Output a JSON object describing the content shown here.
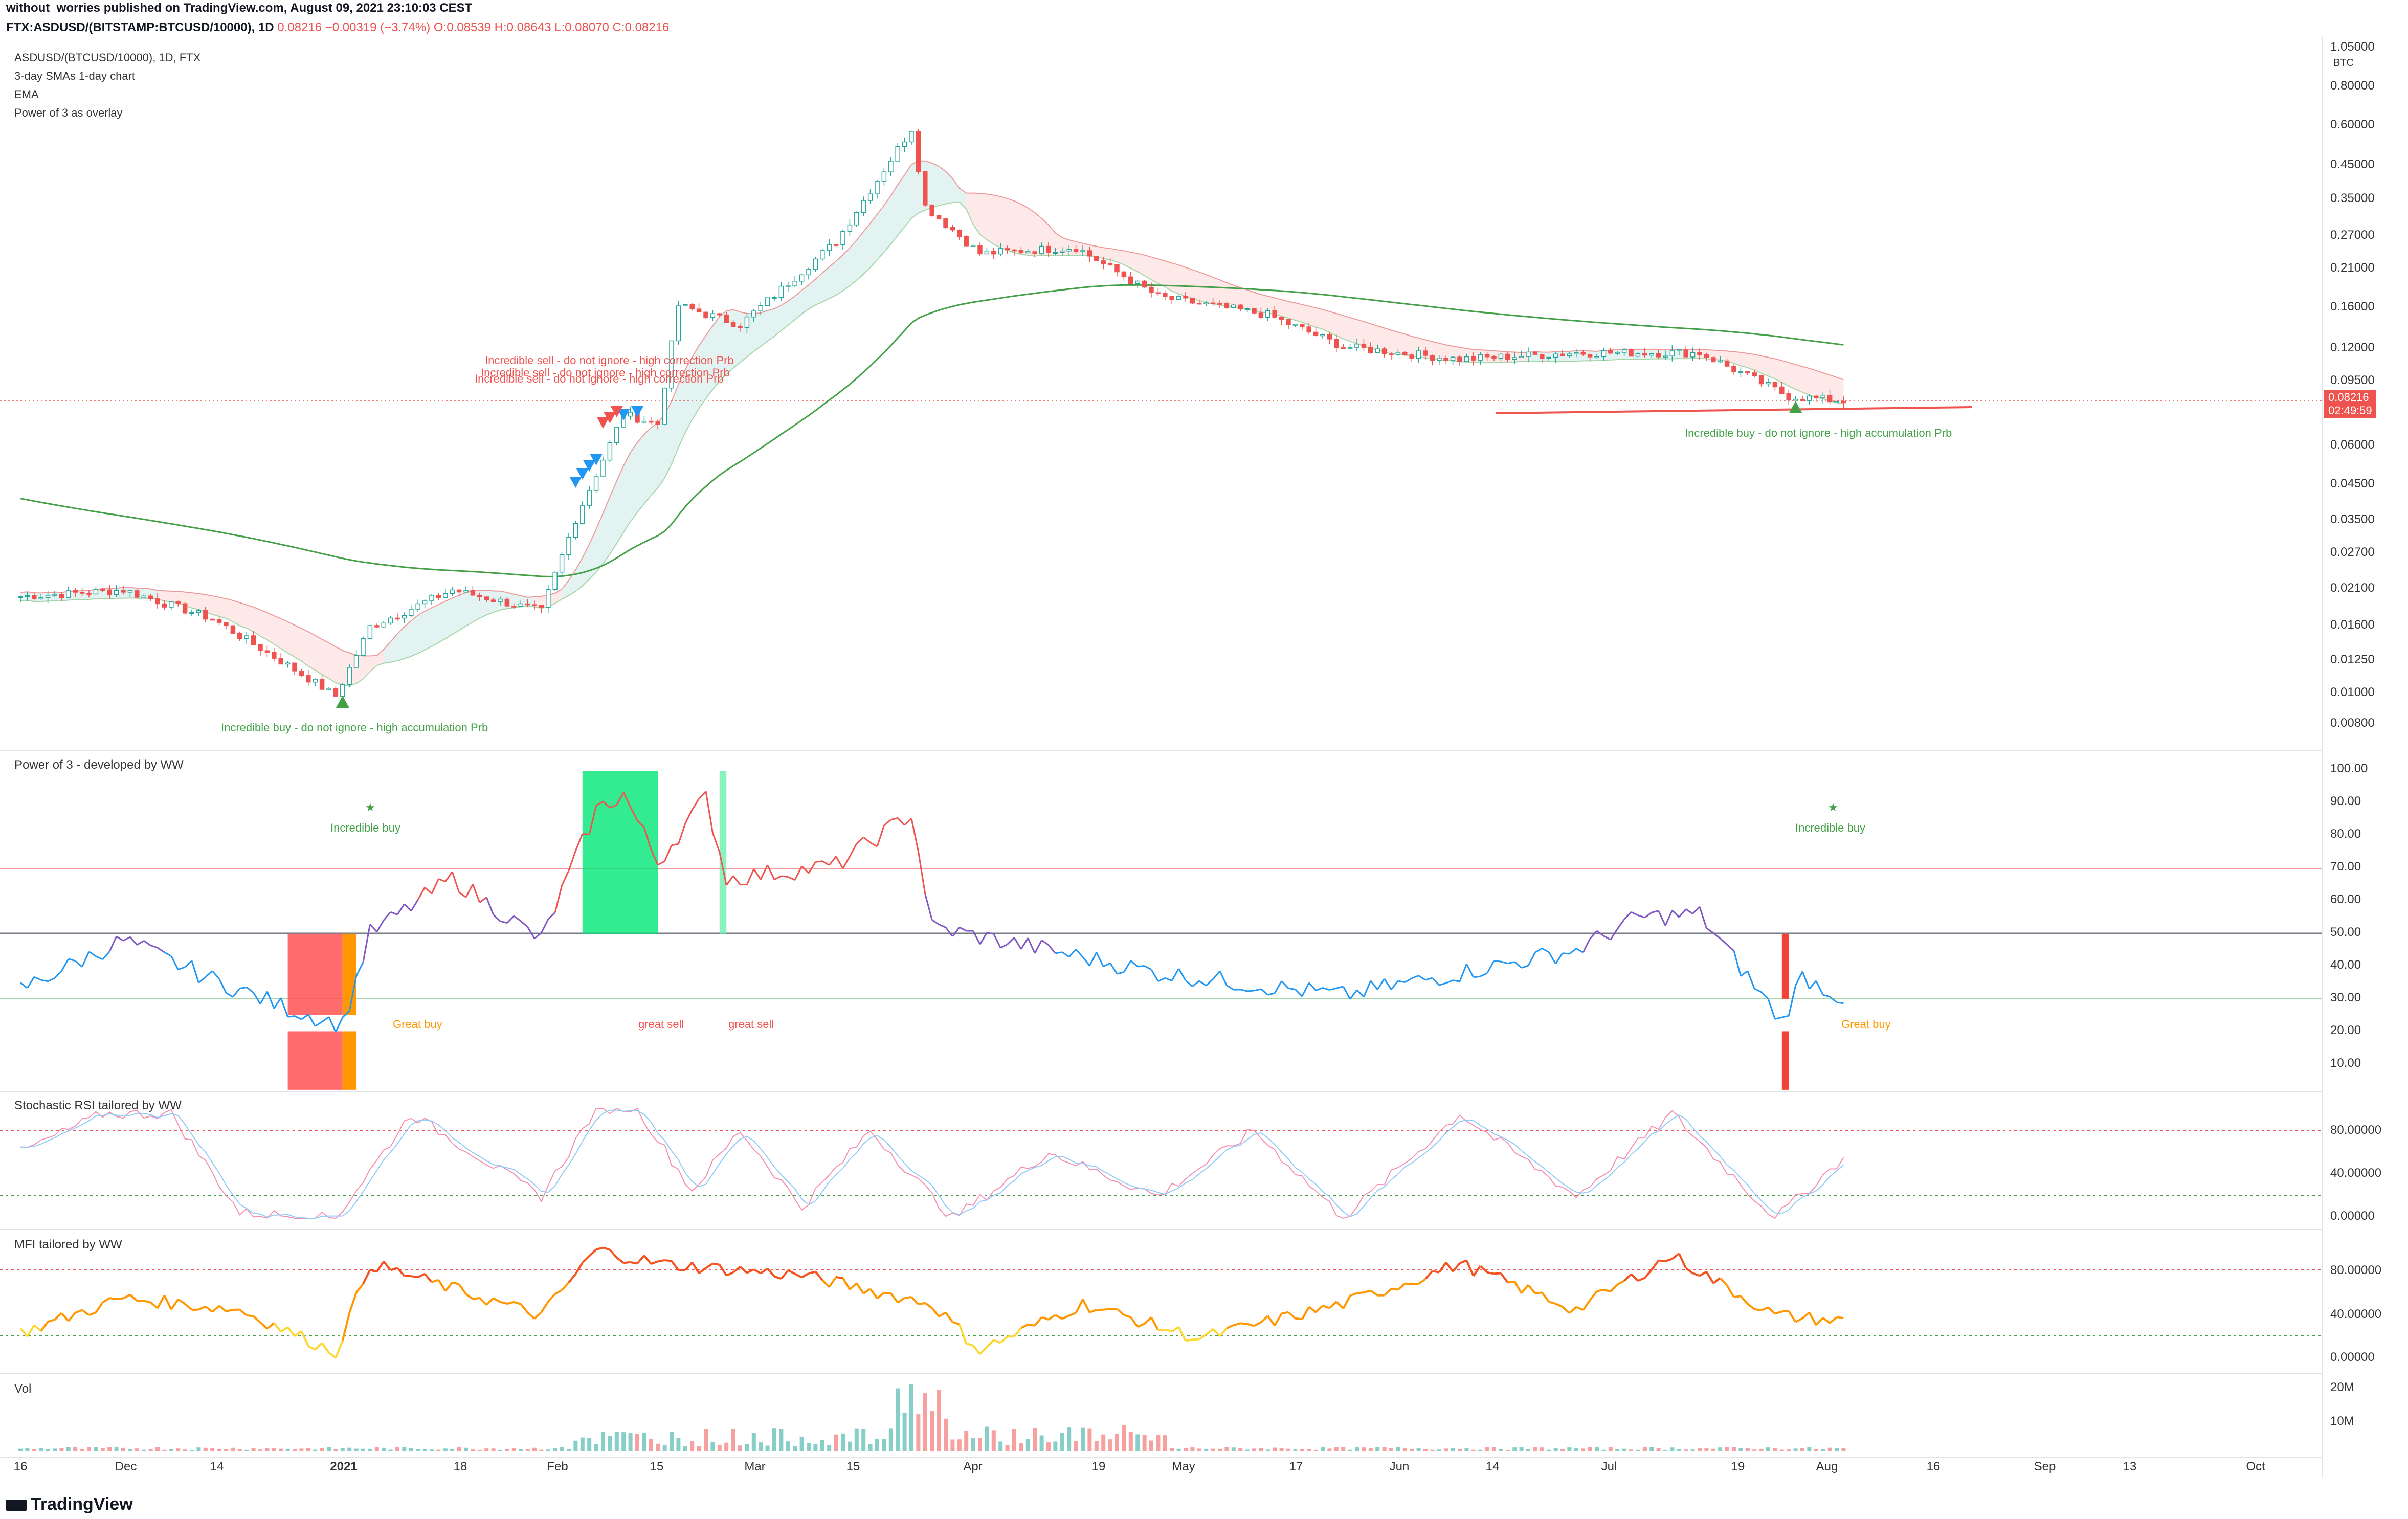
{
  "header": {
    "publisher": "without_worries published on TradingView.com, August 09, 2021 23:10:03 CEST",
    "symbol": "FTX:ASDUSD/(BITSTAMP:BTCUSD/10000), 1D",
    "open_label": "0.08216",
    "change": "−0.00319 (−3.74%)",
    "o": "O:0.08539",
    "h": "H:0.08643",
    "l": "L:0.08070",
    "c": "C:0.08216"
  },
  "legend": {
    "symbol": "ASDUSD/(BTCUSD/10000), 1D, FTX",
    "line1": "3-day SMAs 1-day chart",
    "line2": "EMA",
    "line3": "Power of 3 as overlay"
  },
  "colors": {
    "up": "#26a69a",
    "down": "#ef5350",
    "green_line": "#43a047",
    "blue_line": "#2196f3",
    "orange": "#ff9800",
    "purple": "#673ab7"
  },
  "price_axis": {
    "unit": "BTC",
    "ticks": [
      "1.05000",
      "0.80000",
      "0.60000",
      "0.45000",
      "0.35000",
      "0.27000",
      "0.21000",
      "0.16000",
      "0.12000",
      "0.09500",
      "0.06000",
      "0.04500",
      "0.03500",
      "0.02700",
      "0.02100",
      "0.01600",
      "0.01250",
      "0.01000",
      "0.00800"
    ],
    "last_price": "0.08216",
    "countdown": "02:49:59"
  },
  "x_axis": {
    "labels": [
      "16",
      "Dec",
      "14",
      "2021",
      "18",
      "Feb",
      "15",
      "Mar",
      "15",
      "Apr",
      "19",
      "May",
      "17",
      "Jun",
      "14",
      "Jul",
      "19",
      "Aug",
      "16",
      "Sep",
      "13",
      "Oct"
    ]
  },
  "annotations": {
    "sell1": "Incredible sell - do not ignore - high correction Prb",
    "sell2": "Incredible sell - do not ignore - high correction Prb",
    "sell3": "Incredible sell - do not ignore - high correction Prb",
    "buy1": "Incredible buy - do not ignore - high accumulation Prb",
    "buy2": "Incredible buy - do not ignore - high accumulation Prb"
  },
  "power3": {
    "title": "Power of 3 - developed by WW",
    "ticks": [
      "100.00",
      "90.00",
      "80.00",
      "70.00",
      "60.00",
      "50.00",
      "40.00",
      "30.00",
      "20.00",
      "10.00"
    ],
    "incredible_buy_1": "Incredible buy",
    "incredible_buy_2": "Incredible buy",
    "great_buy_1": "Great buy",
    "great_buy_2": "Great buy",
    "great_sell_1": "great sell",
    "great_sell_2": "great sell"
  },
  "stoch": {
    "title": "Stochastic RSI tailored by WW",
    "ticks": [
      "80.00000",
      "40.00000",
      "0.00000"
    ]
  },
  "mfi": {
    "title": "MFI tailored by WW",
    "ticks": [
      "80.00000",
      "40.00000",
      "0.00000"
    ]
  },
  "vol": {
    "title": "Vol",
    "ticks": [
      "20M",
      "10M"
    ]
  },
  "footer": {
    "brand": "TradingView"
  },
  "chart_data": {
    "type": "candlestick",
    "title": "ASDUSD/(BTCUSD/10000), 1D, FTX",
    "y_scale": "log",
    "ylim": [
      0.0075,
      1.05
    ],
    "close_path": [
      {
        "x": "2020-11-16",
        "y": 0.021
      },
      {
        "x": "2020-12-01",
        "y": 0.022
      },
      {
        "x": "2020-12-14",
        "y": 0.018
      },
      {
        "x": "2020-12-25",
        "y": 0.013
      },
      {
        "x": "2021-01-01",
        "y": 0.0105
      },
      {
        "x": "2021-01-06",
        "y": 0.017
      },
      {
        "x": "2021-01-18",
        "y": 0.022
      },
      {
        "x": "2021-01-31",
        "y": 0.019
      },
      {
        "x": "2021-02-05",
        "y": 0.036
      },
      {
        "x": "2021-02-12",
        "y": 0.075
      },
      {
        "x": "2021-02-17",
        "y": 0.07
      },
      {
        "x": "2021-02-20",
        "y": 0.16
      },
      {
        "x": "2021-03-01",
        "y": 0.14
      },
      {
        "x": "2021-03-15",
        "y": 0.25
      },
      {
        "x": "2021-03-26",
        "y": 0.55
      },
      {
        "x": "2021-03-28",
        "y": 0.32
      },
      {
        "x": "2021-04-05",
        "y": 0.23
      },
      {
        "x": "2021-04-19",
        "y": 0.24
      },
      {
        "x": "2021-05-01",
        "y": 0.17
      },
      {
        "x": "2021-05-17",
        "y": 0.15
      },
      {
        "x": "2021-05-28",
        "y": 0.12
      },
      {
        "x": "2021-06-14",
        "y": 0.11
      },
      {
        "x": "2021-07-01",
        "y": 0.115
      },
      {
        "x": "2021-07-19",
        "y": 0.115
      },
      {
        "x": "2021-08-01",
        "y": 0.085
      },
      {
        "x": "2021-08-09",
        "y": 0.08216
      }
    ],
    "power3_series": [
      {
        "x": "2020-11-16",
        "y": 33
      },
      {
        "x": "2020-12-01",
        "y": 48
      },
      {
        "x": "2020-12-14",
        "y": 36
      },
      {
        "x": "2020-12-25",
        "y": 27
      },
      {
        "x": "2021-01-02",
        "y": 22
      },
      {
        "x": "2021-01-06",
        "y": 50
      },
      {
        "x": "2021-01-18",
        "y": 67
      },
      {
        "x": "2021-01-31",
        "y": 48
      },
      {
        "x": "2021-02-08",
        "y": 88
      },
      {
        "x": "2021-02-12",
        "y": 93
      },
      {
        "x": "2021-02-17",
        "y": 72
      },
      {
        "x": "2021-02-24",
        "y": 92
      },
      {
        "x": "2021-02-27",
        "y": 67
      },
      {
        "x": "2021-03-15",
        "y": 71
      },
      {
        "x": "2021-03-26",
        "y": 87
      },
      {
        "x": "2021-03-29",
        "y": 52
      },
      {
        "x": "2021-04-15",
        "y": 45
      },
      {
        "x": "2021-05-01",
        "y": 38
      },
      {
        "x": "2021-05-28",
        "y": 31
      },
      {
        "x": "2021-06-14",
        "y": 38
      },
      {
        "x": "2021-07-01",
        "y": 45
      },
      {
        "x": "2021-07-10",
        "y": 55
      },
      {
        "x": "2021-07-19",
        "y": 56
      },
      {
        "x": "2021-07-31",
        "y": 23
      },
      {
        "x": "2021-08-03",
        "y": 37
      },
      {
        "x": "2021-08-09",
        "y": 30
      }
    ],
    "stoch_series": [
      {
        "x": "2020-11-16",
        "y": 60
      },
      {
        "x": "2020-11-28",
        "y": 95
      },
      {
        "x": "2020-12-08",
        "y": 95
      },
      {
        "x": "2020-12-18",
        "y": 5
      },
      {
        "x": "2021-01-01",
        "y": 0
      },
      {
        "x": "2021-01-12",
        "y": 95
      },
      {
        "x": "2021-01-31",
        "y": 20
      },
      {
        "x": "2021-02-08",
        "y": 100
      },
      {
        "x": "2021-02-14",
        "y": 100
      },
      {
        "x": "2021-02-22",
        "y": 25
      },
      {
        "x": "2021-03-01",
        "y": 80
      },
      {
        "x": "2021-03-10",
        "y": 10
      },
      {
        "x": "2021-03-20",
        "y": 80
      },
      {
        "x": "2021-04-01",
        "y": 0
      },
      {
        "x": "2021-04-15",
        "y": 60
      },
      {
        "x": "2021-05-01",
        "y": 20
      },
      {
        "x": "2021-05-15",
        "y": 80
      },
      {
        "x": "2021-05-28",
        "y": 0
      },
      {
        "x": "2021-06-14",
        "y": 95
      },
      {
        "x": "2021-07-01",
        "y": 20
      },
      {
        "x": "2021-07-15",
        "y": 95
      },
      {
        "x": "2021-07-30",
        "y": 0
      },
      {
        "x": "2021-08-09",
        "y": 55
      }
    ],
    "mfi_series": [
      {
        "x": "2020-11-16",
        "y": 25
      },
      {
        "x": "2020-12-01",
        "y": 55
      },
      {
        "x": "2020-12-18",
        "y": 45
      },
      {
        "x": "2021-01-01",
        "y": 8
      },
      {
        "x": "2021-01-06",
        "y": 85
      },
      {
        "x": "2021-01-31",
        "y": 40
      },
      {
        "x": "2021-02-08",
        "y": 97
      },
      {
        "x": "2021-02-17",
        "y": 85
      },
      {
        "x": "2021-03-10",
        "y": 75
      },
      {
        "x": "2021-03-29",
        "y": 50
      },
      {
        "x": "2021-04-05",
        "y": 10
      },
      {
        "x": "2021-04-20",
        "y": 50
      },
      {
        "x": "2021-05-07",
        "y": 20
      },
      {
        "x": "2021-05-28",
        "y": 50
      },
      {
        "x": "2021-06-14",
        "y": 85
      },
      {
        "x": "2021-07-01",
        "y": 45
      },
      {
        "x": "2021-07-15",
        "y": 92
      },
      {
        "x": "2021-07-30",
        "y": 40
      },
      {
        "x": "2021-08-09",
        "y": 35
      }
    ]
  }
}
